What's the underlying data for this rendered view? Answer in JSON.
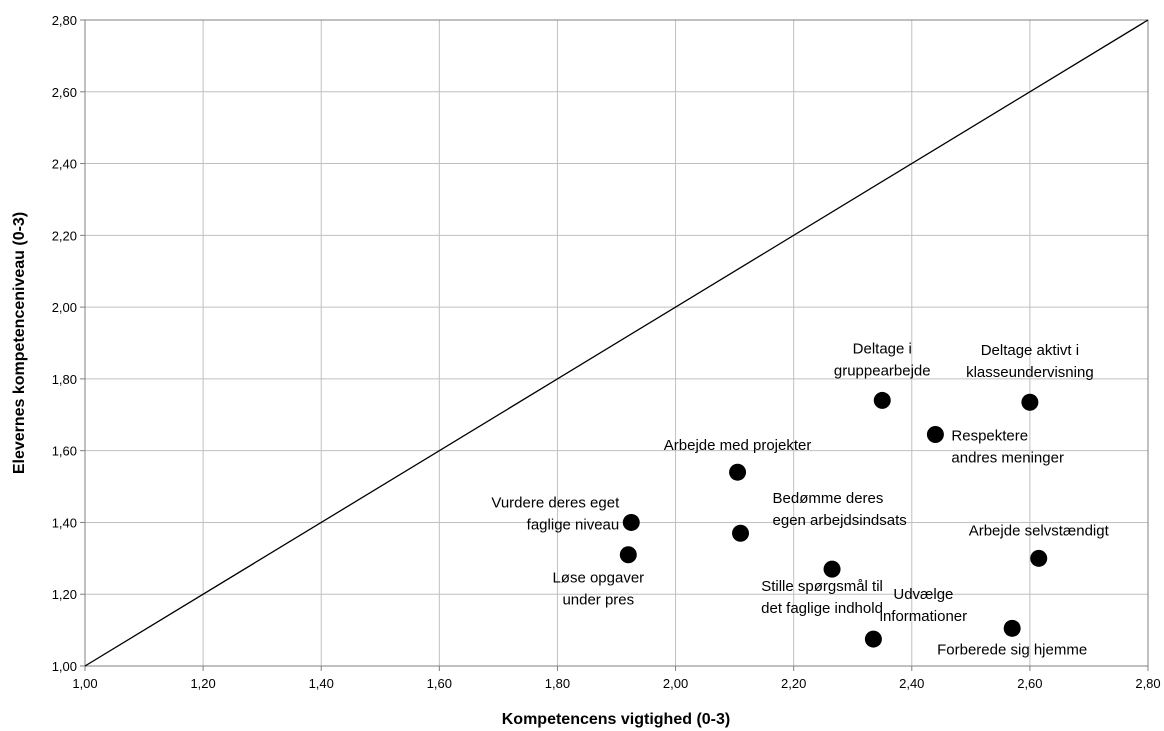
{
  "chart_data": {
    "type": "scatter",
    "title": "",
    "xlabel": "Kompetencens vigtighed (0-3)",
    "ylabel": "Elevernes kompetenceniveau (0-3)",
    "xlim": [
      1.0,
      2.8
    ],
    "ylim": [
      1.0,
      2.8
    ],
    "x_ticks": [
      "1,00",
      "1,20",
      "1,40",
      "1,60",
      "1,80",
      "2,00",
      "2,20",
      "2,40",
      "2,60",
      "2,80"
    ],
    "y_ticks": [
      "1,00",
      "1,20",
      "1,40",
      "1,60",
      "1,80",
      "2,00",
      "2,20",
      "2,40",
      "2,60",
      "2,80"
    ],
    "grid": true,
    "reference_line": "diagonal",
    "points": [
      {
        "label": [
          "Deltage i",
          "gruppearbejde"
        ],
        "x": 2.35,
        "y": 1.74
      },
      {
        "label": [
          "Deltage aktivt i",
          "klasseundervisning"
        ],
        "x": 2.6,
        "y": 1.735
      },
      {
        "label": [
          "Respektere",
          "andres meninger"
        ],
        "x": 2.44,
        "y": 1.645
      },
      {
        "label": [
          "Arbejde med projekter"
        ],
        "x": 2.105,
        "y": 1.54
      },
      {
        "label": [
          "Vurdere deres eget",
          "faglige niveau"
        ],
        "x": 1.925,
        "y": 1.4
      },
      {
        "label": [
          "Bedømme deres",
          "egen arbejdsindsats"
        ],
        "x": 2.11,
        "y": 1.37
      },
      {
        "label": [
          "Arbejde selvstændigt"
        ],
        "x": 2.615,
        "y": 1.3
      },
      {
        "label": [
          "Løse opgaver",
          "under pres"
        ],
        "x": 1.92,
        "y": 1.31
      },
      {
        "label": [
          "Stille spørgsmål til",
          "det faglige indhold"
        ],
        "x": 2.265,
        "y": 1.27
      },
      {
        "label": [
          "Udvælge",
          "informationer"
        ],
        "x": 2.335,
        "y": 1.075
      },
      {
        "label": [
          "Forberede sig hjemme"
        ],
        "x": 2.57,
        "y": 1.105
      }
    ],
    "colors": {
      "point": "#000000",
      "grid": "#c0c0c0",
      "line": "#000000"
    }
  }
}
